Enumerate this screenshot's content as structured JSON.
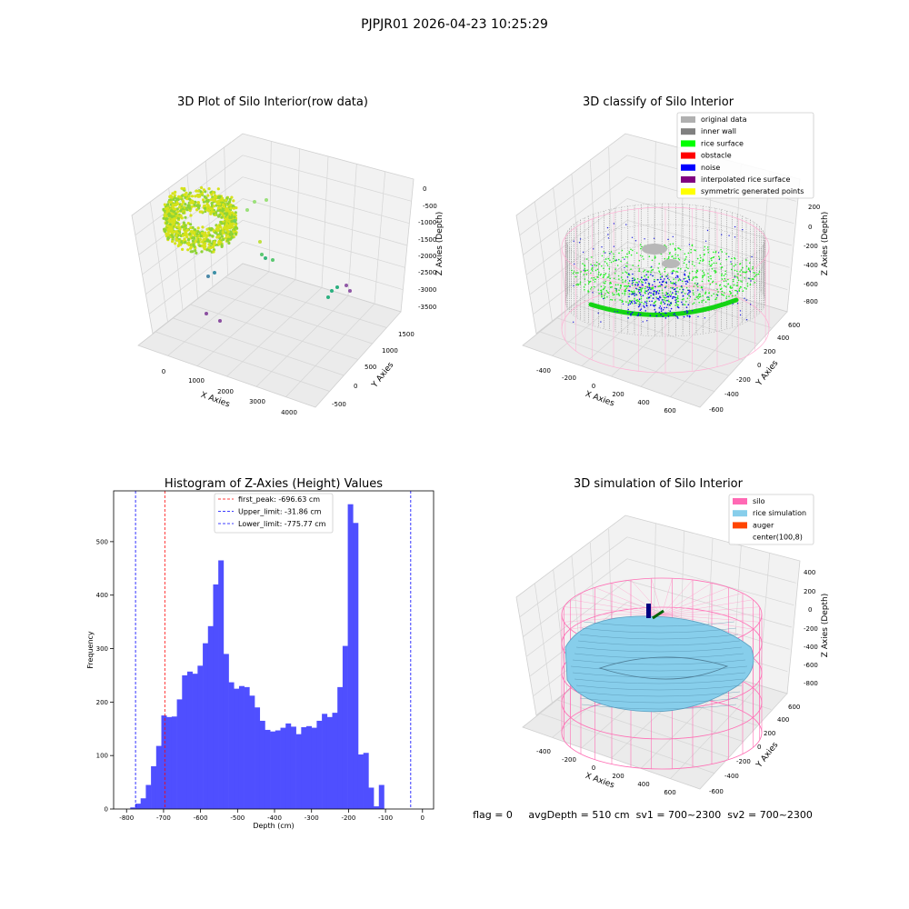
{
  "figure": {
    "suptitle": "PJPJR01 2026-04-23 10:25:29",
    "footer": "flag = 0     avgDepth = 510 cm  sv1 = 700~2300  sv2 = 700~2300"
  },
  "panels": {
    "raw": {
      "title": "3D Plot of Silo Interior(row data)",
      "xlabel": "X Axies",
      "ylabel": "Y Axies",
      "zlabel": "Z Axies (Depth)",
      "xticks": [
        "0",
        "1000",
        "2000",
        "3000",
        "4000"
      ],
      "yticks": [
        "-500",
        "0",
        "500",
        "1000",
        "1500"
      ],
      "zticks": [
        "0",
        "-500",
        "-1000",
        "-1500",
        "-2000",
        "-2500",
        "-3000",
        "-3500"
      ]
    },
    "classify": {
      "title": "3D classify of Silo Interior",
      "xlabel": "X Axies",
      "ylabel": "Y Axies",
      "zlabel": "Z Axies (Depth)",
      "xticks": [
        "-400",
        "-200",
        "0",
        "200",
        "400",
        "600"
      ],
      "yticks": [
        "-600",
        "-400",
        "-200",
        "0",
        "200",
        "400",
        "600"
      ],
      "zticks": [
        "200",
        "0",
        "-200",
        "-400",
        "-600",
        "-800"
      ],
      "legend": [
        {
          "label": "original data",
          "color": "#b0b0b0"
        },
        {
          "label": "inner wall",
          "color": "#808080"
        },
        {
          "label": "rice surface",
          "color": "#00ff00"
        },
        {
          "label": "obstacle",
          "color": "#ff0000"
        },
        {
          "label": "noise",
          "color": "#0000ff"
        },
        {
          "label": "interpolated rice surface",
          "color": "#800080"
        },
        {
          "label": "symmetric generated points",
          "color": "#ffff00"
        }
      ]
    },
    "simulation": {
      "title": "3D simulation of Silo Interior",
      "xlabel": "X Axies",
      "ylabel": "Y Axies",
      "zlabel": "Z Axies (Depth)",
      "xticks": [
        "-400",
        "-200",
        "0",
        "200",
        "400",
        "600"
      ],
      "yticks": [
        "-600",
        "-400",
        "-200",
        "0",
        "200",
        "400",
        "600"
      ],
      "zticks": [
        "400",
        "200",
        "0",
        "-200",
        "-400",
        "-600",
        "-800"
      ],
      "legend": [
        {
          "label": "silo",
          "color": "#ff69b4"
        },
        {
          "label": "rice simulation",
          "color": "#87ceeb"
        },
        {
          "label": "auger",
          "color": "#ff4500"
        },
        {
          "label": "center(100,8)",
          "color": "#ffffff"
        }
      ]
    }
  },
  "chart_data": {
    "type": "bar",
    "title": "Histogram of Z-Axies (Height) Values",
    "xlabel": "Depth (cm)",
    "ylabel": "Frequency",
    "xlim": [
      -835,
      30
    ],
    "ylim": [
      0,
      595
    ],
    "xticks": [
      -800,
      -700,
      -600,
      -500,
      -400,
      -300,
      -200,
      -100,
      0
    ],
    "yticks": [
      0,
      100,
      200,
      300,
      400,
      500
    ],
    "bin_start": -790,
    "bin_width": 14,
    "values": [
      3,
      10,
      20,
      45,
      80,
      118,
      175,
      172,
      173,
      205,
      250,
      257,
      253,
      268,
      310,
      342,
      420,
      465,
      290,
      237,
      225,
      230,
      228,
      212,
      190,
      165,
      148,
      145,
      147,
      152,
      160,
      154,
      140,
      153,
      155,
      152,
      165,
      178,
      172,
      180,
      228,
      305,
      570,
      535,
      102,
      105,
      40,
      5,
      45
    ],
    "lines": [
      {
        "label": "first_peak: -696.63 cm",
        "x": -696.63,
        "color": "#ff0000"
      },
      {
        "label": "Upper_limit: -31.86 cm",
        "x": -31.86,
        "color": "#0000ff"
      },
      {
        "label": "Lower_limit: -775.77 cm",
        "x": -775.77,
        "color": "#0000ff"
      }
    ],
    "bar_color": "#4f4fff",
    "legend_position": "top-center",
    "grid": false
  }
}
